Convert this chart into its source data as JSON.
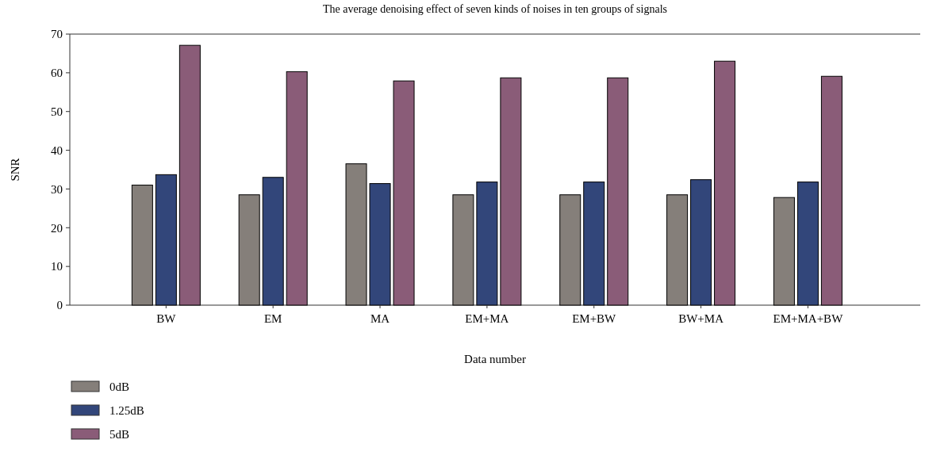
{
  "chart_data": {
    "type": "bar",
    "title": "The average denoising effect of seven kinds of noises in ten groups of signals",
    "xlabel": "Data number",
    "ylabel": "SNR",
    "categories": [
      "BW",
      "EM",
      "MA",
      "EM+MA",
      "EM+BW",
      "BW+MA",
      "EM+MA+BW"
    ],
    "series": [
      {
        "name": "0dB",
        "color": "#857f7a",
        "values": [
          31.0,
          28.5,
          36.5,
          28.5,
          28.5,
          28.5,
          27.8
        ]
      },
      {
        "name": "1.25dB",
        "color": "#32467a",
        "values": [
          33.7,
          33.0,
          31.4,
          31.8,
          31.8,
          32.4,
          31.8
        ]
      },
      {
        "name": "5dB",
        "color": "#8a5c78",
        "values": [
          67.1,
          60.3,
          57.9,
          58.7,
          58.7,
          63.0,
          59.1
        ]
      }
    ],
    "ylim": [
      0,
      70
    ],
    "yticks": [
      0,
      10,
      20,
      30,
      40,
      50,
      60,
      70
    ],
    "grid": false,
    "legend": "bottom left"
  }
}
